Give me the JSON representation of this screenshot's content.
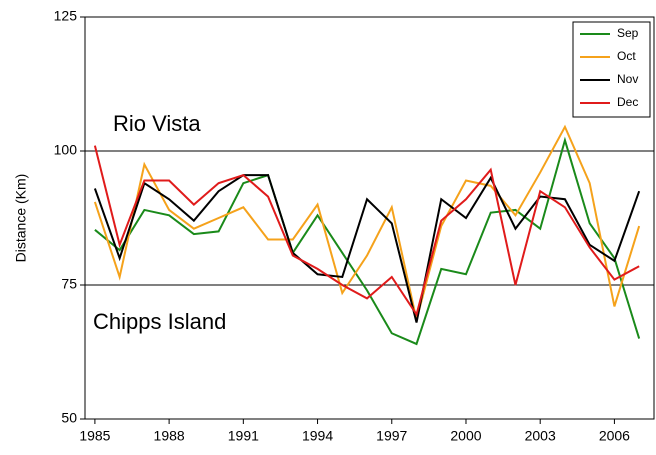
{
  "chart_data": {
    "type": "line",
    "y_label": "Distance (Km)",
    "annotations": [
      "Rio Vista",
      "Chipps Island"
    ],
    "x": [
      1985,
      1986,
      1987,
      1988,
      1989,
      1990,
      1991,
      1992,
      1993,
      1994,
      1995,
      1996,
      1997,
      1998,
      1999,
      2000,
      2001,
      2002,
      2003,
      2004,
      2005,
      2006,
      2007
    ],
    "series": [
      {
        "name": "Sep",
        "color": "#1a8a1a",
        "values": [
          85.3,
          81.5,
          89,
          88,
          84.5,
          85,
          94,
          95.5,
          81,
          88,
          81,
          74,
          66,
          64,
          78,
          77,
          88.5,
          89,
          85.5,
          102,
          86.5,
          80,
          65
        ]
      },
      {
        "name": "Oct",
        "color": "#f5a21b",
        "values": [
          90.5,
          76.5,
          97.5,
          89,
          85.5,
          87.5,
          89.5,
          83.5,
          83.5,
          90,
          73.5,
          80.5,
          89.5,
          68.5,
          86,
          94.5,
          93.5,
          88,
          96,
          104.5,
          94,
          71,
          86
        ]
      },
      {
        "name": "Nov",
        "color": "#000000",
        "values": [
          93,
          80,
          94,
          91,
          87,
          92.5,
          95.5,
          95.5,
          81,
          77,
          76.5,
          91,
          86.5,
          68,
          91,
          87.5,
          95,
          85.5,
          91.5,
          91,
          82.5,
          79.5,
          92.5
        ]
      },
      {
        "name": "Dec",
        "color": "#e01b1b",
        "values": [
          101,
          82.5,
          94.5,
          94.5,
          90,
          94,
          95.5,
          91.5,
          80.5,
          78,
          75,
          72.5,
          76.5,
          69.5,
          87,
          91,
          96.5,
          75,
          92.5,
          89.5,
          82,
          76,
          78.5
        ]
      }
    ],
    "xlim": [
      1984.6,
      2007.6
    ],
    "xticks": [
      1985,
      1988,
      1991,
      1994,
      1997,
      2000,
      2003,
      2006
    ],
    "ylim": [
      50,
      125
    ],
    "yticks": [
      50,
      75,
      100,
      125
    ],
    "grid": true,
    "legend": "top-right"
  }
}
